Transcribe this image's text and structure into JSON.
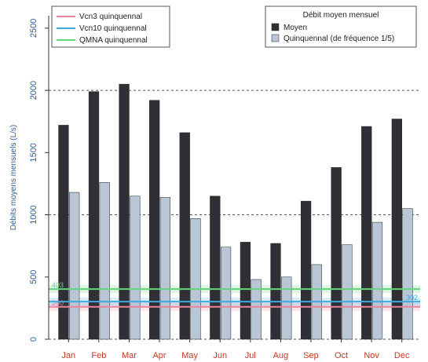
{
  "chart_data": {
    "type": "bar",
    "title": "",
    "xlabel": "",
    "ylabel": "Débits moyens mensuels (L/s)",
    "categories": [
      "Jan",
      "Feb",
      "Mar",
      "Apr",
      "May",
      "Jun",
      "Jul",
      "Aug",
      "Sep",
      "Oct",
      "Nov",
      "Dec"
    ],
    "series": [
      {
        "name": "Moyen",
        "color": "#2f2f35",
        "values": [
          1720,
          1990,
          2050,
          1920,
          1660,
          1150,
          780,
          770,
          1110,
          1380,
          1710,
          1770
        ]
      },
      {
        "name": "Quinquennal (de fréquence 1/5)",
        "color": "#b9c6d6",
        "values": [
          1180,
          1260,
          1150,
          1140,
          970,
          740,
          480,
          500,
          600,
          760,
          940,
          1050
        ]
      }
    ],
    "reference_lines": [
      {
        "name": "Vcn3 quinquennal",
        "color": "#e8849a",
        "value": 260,
        "label": "260"
      },
      {
        "name": "Vcn10 quinquennal",
        "color": "#3fa9e0",
        "value": 302,
        "label": "302"
      },
      {
        "name": "QMNA quinquennal",
        "color": "#63d47a",
        "value": 403,
        "label": "403"
      }
    ],
    "ylim": [
      0,
      2600
    ],
    "yticks": [
      0,
      500,
      1000,
      1500,
      2000,
      2500
    ],
    "dashed_gridlines": [
      1000,
      2000
    ],
    "legend_left_placement": "top-left",
    "legend_right_placement": "top-right",
    "legend_right_title": "Débit moyen mensuel"
  }
}
